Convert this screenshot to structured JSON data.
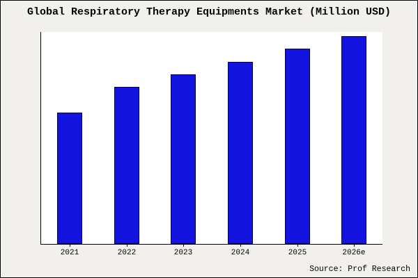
{
  "title": "Global Respiratory Therapy Equipments Market (Million USD)",
  "source": "Source: Prof Research",
  "chart_data": {
    "type": "bar",
    "title": "Global Respiratory Therapy Equipments Market (Million USD)",
    "categories": [
      "2021",
      "2022",
      "2023",
      "2024",
      "2025",
      "2026e"
    ],
    "values": [
      62,
      74,
      80,
      86,
      92,
      98
    ],
    "xlabel": "",
    "ylabel": "",
    "ylim": [
      0,
      100
    ],
    "grid": false,
    "legend": false,
    "bar_color": "#1414e0",
    "bar_border_color": "#00004d",
    "plot_background": "#ffffff",
    "page_background": "#f1f0ec",
    "axis_color": "#000000",
    "annotation": "Source: Prof Research"
  }
}
